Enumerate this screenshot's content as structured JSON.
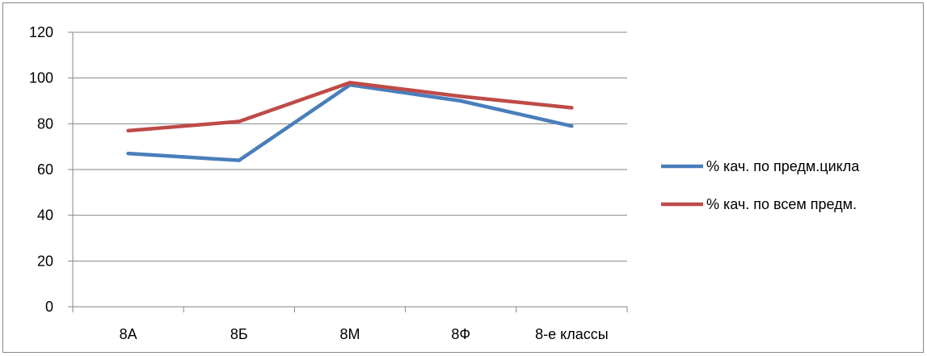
{
  "chart_data": {
    "type": "line",
    "categories": [
      "8А",
      "8Б",
      "8М",
      "8Ф",
      "8-е классы"
    ],
    "ylim": [
      0,
      120
    ],
    "yticks": [
      0,
      20,
      40,
      60,
      80,
      100,
      120
    ],
    "grid": true,
    "legend_position": "right",
    "series": [
      {
        "name": "% кач. по предм.цикла",
        "color": "#4a7ebb",
        "values": [
          67,
          64,
          97,
          90,
          79
        ]
      },
      {
        "name": "% кач. по всем предм.",
        "color": "#be4b48",
        "values": [
          77,
          81,
          98,
          92,
          87
        ]
      }
    ]
  }
}
